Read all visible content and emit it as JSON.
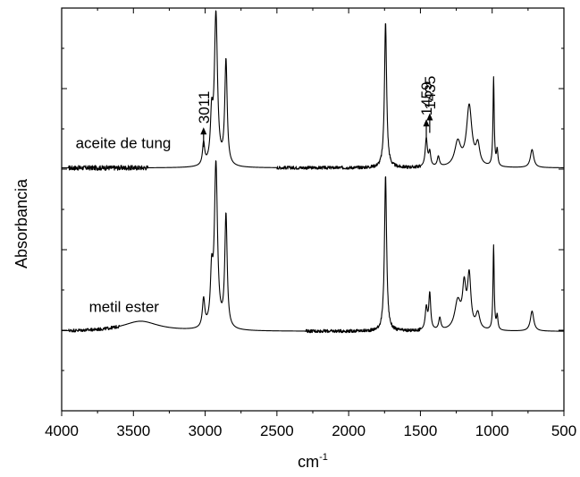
{
  "chart_data": {
    "type": "line",
    "xlabel_base": "cm",
    "xlabel_sup": "-1",
    "ylabel": "Absorbancia",
    "xlim": [
      4000,
      500
    ],
    "x_reversed": true,
    "x_ticks": [
      4000,
      3500,
      3000,
      2500,
      2000,
      1500,
      1000,
      500
    ],
    "x_tick_labels": [
      "4000",
      "3500",
      "3000",
      "2500",
      "2000",
      "1500",
      "1000",
      "500"
    ],
    "ylim": [
      0,
      1
    ],
    "y_tick_labels_shown": false,
    "grid": false,
    "series": [
      {
        "name": "aceite de tung",
        "baseline": 0.603,
        "noise_regions": [
          [
            3950,
            3400,
            0.006
          ],
          [
            2500,
            1500,
            0.004
          ]
        ],
        "peaks": [
          {
            "x": 3011,
            "h": 0.055,
            "w": 9
          },
          {
            "x": 2955,
            "h": 0.11,
            "w": 10
          },
          {
            "x": 2925,
            "h": 0.375,
            "w": 13
          },
          {
            "x": 2855,
            "h": 0.26,
            "w": 10
          },
          {
            "x": 1743,
            "h": 0.36,
            "w": 9
          },
          {
            "x": 1459,
            "h": 0.07,
            "w": 9
          },
          {
            "x": 1435,
            "h": 0.035,
            "w": 8
          },
          {
            "x": 1375,
            "h": 0.025,
            "w": 9
          },
          {
            "x": 1240,
            "h": 0.06,
            "w": 25
          },
          {
            "x": 1160,
            "h": 0.15,
            "w": 22
          },
          {
            "x": 1100,
            "h": 0.05,
            "w": 16
          },
          {
            "x": 990,
            "h": 0.22,
            "w": 5
          },
          {
            "x": 965,
            "h": 0.04,
            "w": 6
          },
          {
            "x": 722,
            "h": 0.045,
            "w": 14
          }
        ]
      },
      {
        "name": "metil ester",
        "baseline": 0.197,
        "noise_regions": [
          [
            3950,
            3600,
            0.004
          ],
          [
            2300,
            1500,
            0.004
          ]
        ],
        "peaks": [
          {
            "x": 3450,
            "h": 0.025,
            "w": 150
          },
          {
            "x": 3011,
            "h": 0.07,
            "w": 10
          },
          {
            "x": 2955,
            "h": 0.12,
            "w": 10
          },
          {
            "x": 2925,
            "h": 0.405,
            "w": 13
          },
          {
            "x": 2855,
            "h": 0.28,
            "w": 10
          },
          {
            "x": 1743,
            "h": 0.385,
            "w": 9
          },
          {
            "x": 1459,
            "h": 0.055,
            "w": 9
          },
          {
            "x": 1435,
            "h": 0.09,
            "w": 8
          },
          {
            "x": 1365,
            "h": 0.03,
            "w": 9
          },
          {
            "x": 1240,
            "h": 0.07,
            "w": 25
          },
          {
            "x": 1195,
            "h": 0.1,
            "w": 14
          },
          {
            "x": 1160,
            "h": 0.13,
            "w": 14
          },
          {
            "x": 1100,
            "h": 0.04,
            "w": 16
          },
          {
            "x": 990,
            "h": 0.21,
            "w": 5
          },
          {
            "x": 965,
            "h": 0.035,
            "w": 6
          },
          {
            "x": 722,
            "h": 0.05,
            "w": 14
          }
        ]
      }
    ],
    "annotations": [
      {
        "text": "3011",
        "x": 3011,
        "y": 0.655,
        "arrow": true,
        "rotated": true
      },
      {
        "text": "1459",
        "x": 1459,
        "y": 0.675,
        "arrow": true,
        "rotated": true
      },
      {
        "text": "1435",
        "x": 1435,
        "y": 0.69,
        "arrow": true,
        "rotated": true
      }
    ]
  },
  "colors": {
    "line": "#000000",
    "background": "#ffffff"
  }
}
